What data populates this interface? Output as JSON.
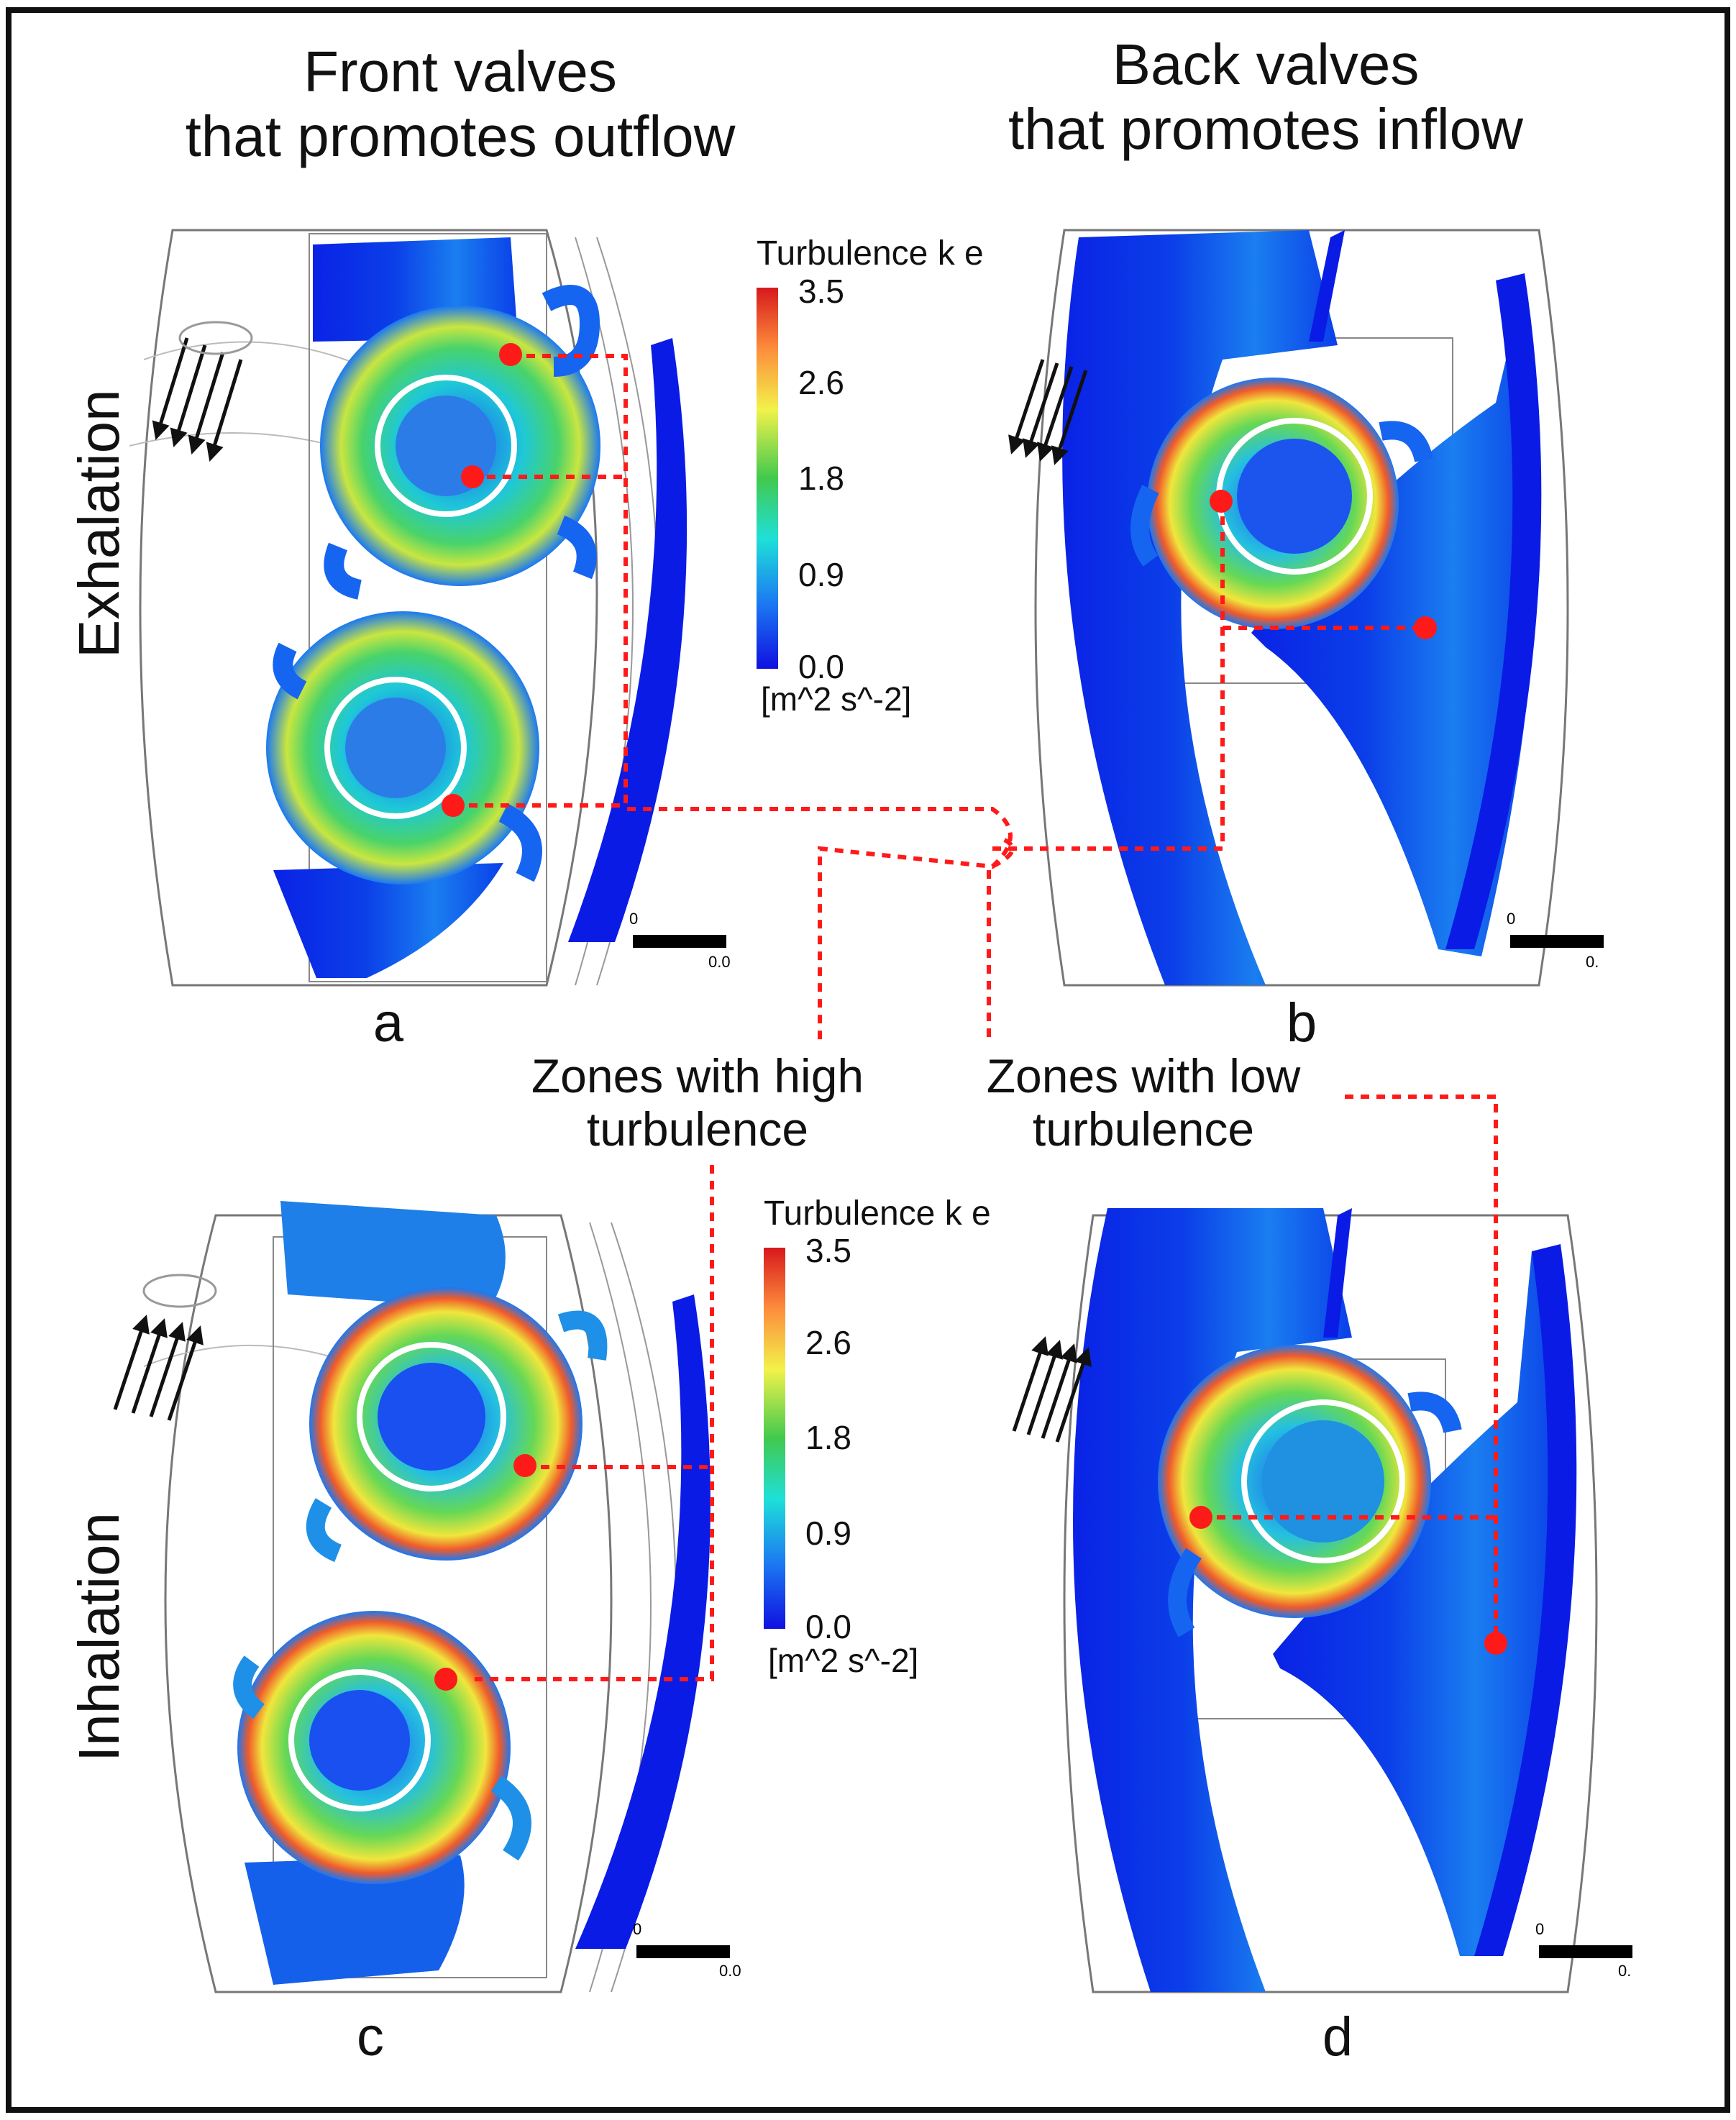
{
  "columns": {
    "front": "Front valves\nthat promotes outflow",
    "back": "Back valves\nthat promotes inflow"
  },
  "rows": {
    "top": "Exhalation",
    "bottom": "Inhalation"
  },
  "panels": {
    "a": "a",
    "b": "b",
    "c": "c",
    "d": "d"
  },
  "annotations": {
    "high": "Zones with high\nturbulence",
    "low": "Zones with low\nturbulence"
  },
  "colorbar": {
    "title": "Turbulence k e",
    "ticks": [
      "3.5",
      "2.6",
      "1.8",
      "0.9",
      "0.0"
    ],
    "unit": "[m^2 s^-2]",
    "colors": [
      "#d7191c",
      "#fdae61",
      "#f2f24a",
      "#41c94e",
      "#1ee0d8",
      "#1b78f2",
      "#1010e0"
    ]
  },
  "scalebar": {
    "zero": "0",
    "end_a": "0.0",
    "end_b": "0.",
    "end_c": "0.0",
    "end_d": "0."
  },
  "colors": {
    "marker": "#ff1a1a",
    "low_flow": "#0a1be6",
    "frame": "#111111"
  }
}
